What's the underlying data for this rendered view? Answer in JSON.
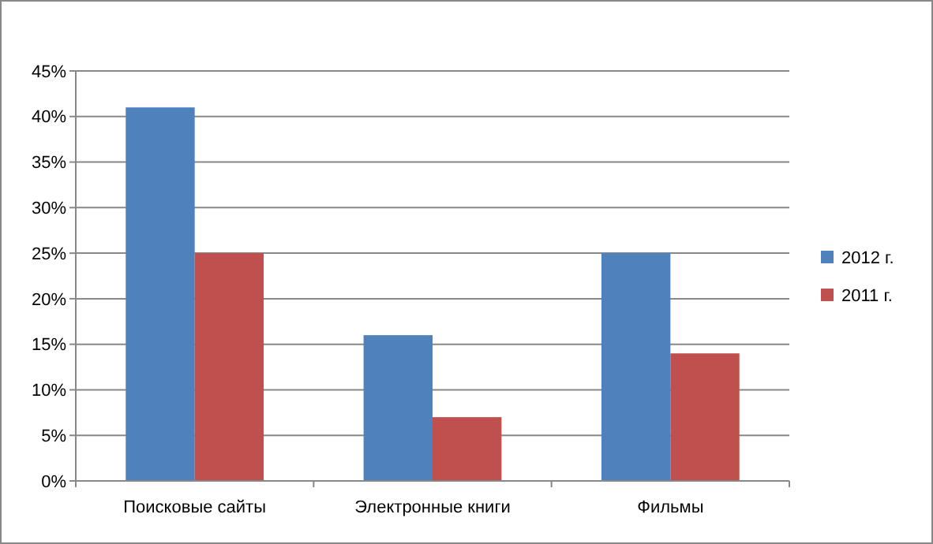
{
  "chart_data": {
    "type": "bar",
    "categories": [
      "Поисковые сайты",
      "Электронные книги",
      "Фильмы"
    ],
    "series": [
      {
        "name": "2012 г.",
        "color": "#4f81bd",
        "values": [
          41,
          16,
          25
        ]
      },
      {
        "name": "2011 г.",
        "color": "#c0504d",
        "values": [
          25,
          7,
          14
        ]
      }
    ],
    "ylim": [
      0,
      45
    ],
    "yticks": [
      {
        "value": 0,
        "label": "0%"
      },
      {
        "value": 5,
        "label": "5%"
      },
      {
        "value": 10,
        "label": "10%"
      },
      {
        "value": 15,
        "label": "15%"
      },
      {
        "value": 20,
        "label": "20%"
      },
      {
        "value": 25,
        "label": "25%"
      },
      {
        "value": 30,
        "label": "30%"
      },
      {
        "value": 35,
        "label": "35%"
      },
      {
        "value": 40,
        "label": "40%"
      },
      {
        "value": 45,
        "label": "45%"
      }
    ],
    "grid": "y",
    "legend": "right"
  }
}
